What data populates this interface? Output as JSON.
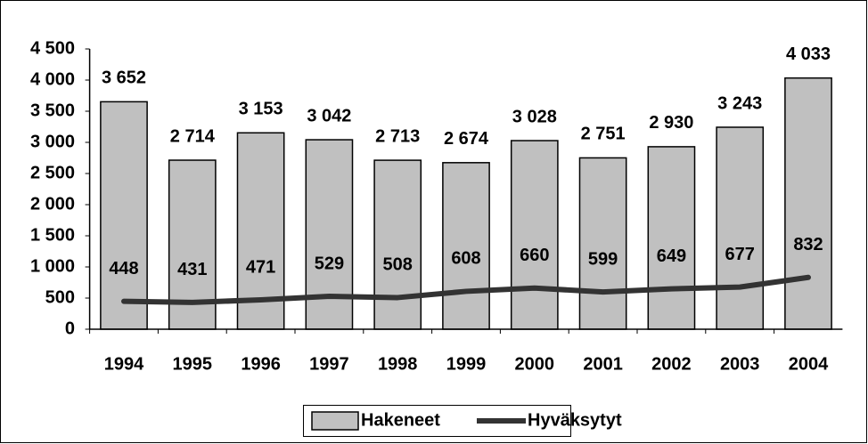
{
  "chart_data": {
    "type": "bar",
    "categories": [
      "1994",
      "1995",
      "1996",
      "1997",
      "1998",
      "1999",
      "2000",
      "2001",
      "2002",
      "2003",
      "2004"
    ],
    "series": [
      {
        "name": "Hakeneet",
        "type": "bar",
        "color": "#c0c0c0",
        "values": [
          3652,
          2714,
          3153,
          3042,
          2713,
          2674,
          3028,
          2751,
          2930,
          3243,
          4033
        ],
        "value_labels": [
          "3 652",
          "2 714",
          "3 153",
          "3 042",
          "2 713",
          "2 674",
          "3 028",
          "2 751",
          "2 930",
          "3 243",
          "4 033"
        ]
      },
      {
        "name": "Hyväksytyt",
        "type": "line",
        "color": "#333333",
        "values": [
          448,
          431,
          471,
          529,
          508,
          608,
          660,
          599,
          649,
          677,
          832
        ]
      }
    ],
    "ylim": [
      0,
      4500
    ],
    "yticks": [
      0,
      500,
      {
        "value": 1000,
        "label": "1 000"
      },
      {
        "value": 1500,
        "label": "1 500"
      },
      {
        "value": 2000,
        "label": "2 000"
      },
      {
        "value": 2500,
        "label": "2 500"
      },
      {
        "value": 3000,
        "label": "3 000"
      },
      {
        "value": 3500,
        "label": "3 500"
      },
      {
        "value": 4000,
        "label": "4 000"
      },
      {
        "value": 4500,
        "label": "4 500"
      }
    ],
    "grid": false,
    "legend": "bottom"
  }
}
